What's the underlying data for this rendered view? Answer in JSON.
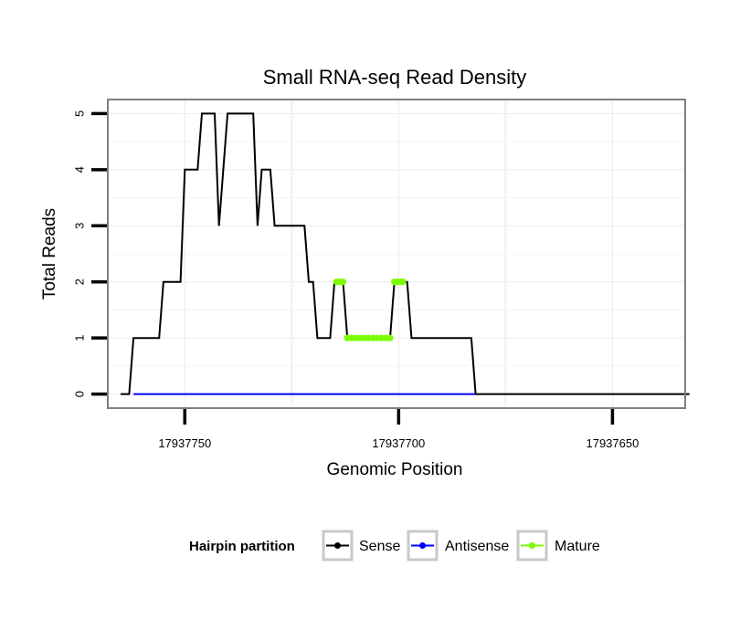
{
  "chart_data": {
    "type": "line",
    "title": "Small RNA-seq Read Density",
    "xlabel": "Genomic Position",
    "ylabel": "Total Reads",
    "x_reversed": true,
    "xlim": [
      17937768,
      17937633
    ],
    "ylim": [
      -0.25,
      5.25
    ],
    "x_ticks": [
      17937750,
      17937700,
      17937650
    ],
    "x_tick_labels": [
      "17937750",
      "17937700",
      "17937650"
    ],
    "y_ticks": [
      0,
      1,
      2,
      3,
      4,
      5
    ],
    "y_tick_labels": [
      "0",
      "1",
      "2",
      "3",
      "4",
      "5"
    ],
    "grid": true,
    "legend": {
      "title": "Hairpin partition",
      "position": "bottom",
      "entries": [
        {
          "name": "Sense",
          "color": "#000000"
        },
        {
          "name": "Antisense",
          "color": "#0000ff"
        },
        {
          "name": "Mature",
          "color": "#7cfc00"
        }
      ]
    },
    "series": [
      {
        "name": "Sense",
        "color": "#000000",
        "points": [
          [
            17937765,
            0
          ],
          [
            17937763,
            0
          ],
          [
            17937762,
            1
          ],
          [
            17937761,
            1
          ],
          [
            17937756,
            1
          ],
          [
            17937755,
            2
          ],
          [
            17937751,
            2
          ],
          [
            17937750,
            4
          ],
          [
            17937747,
            4
          ],
          [
            17937746,
            5
          ],
          [
            17937743,
            5
          ],
          [
            17937742,
            3
          ],
          [
            17937741,
            4
          ],
          [
            17937740,
            5
          ],
          [
            17937734,
            5
          ],
          [
            17937733,
            3
          ],
          [
            17937732,
            4
          ],
          [
            17937730,
            4
          ],
          [
            17937729,
            3
          ],
          [
            17937722,
            3
          ],
          [
            17937721,
            2
          ],
          [
            17937720,
            2
          ],
          [
            17937719,
            1
          ],
          [
            17937716,
            1
          ],
          [
            17937715,
            2
          ],
          [
            17937713,
            2
          ],
          [
            17937712,
            1
          ],
          [
            17937702,
            1
          ],
          [
            17937701,
            2
          ],
          [
            17937698,
            2
          ],
          [
            17937697,
            1
          ],
          [
            17937683,
            1
          ],
          [
            17937682,
            0
          ],
          [
            17937632,
            0
          ]
        ]
      },
      {
        "name": "Antisense",
        "color": "#0000ff",
        "points": [
          [
            17937762,
            0
          ],
          [
            17937682,
            0
          ]
        ]
      },
      {
        "name": "Mature",
        "color": "#7cfc00",
        "segments": [
          {
            "x": [
              17937714.5,
              17937714,
              17937713.5,
              17937713
            ],
            "y": [
              2,
              2,
              2,
              2
            ]
          },
          {
            "x": [
              17937712,
              17937711,
              17937710,
              17937709,
              17937708,
              17937707,
              17937706,
              17937705,
              17937704,
              17937703,
              17937702
            ],
            "y": [
              1,
              1,
              1,
              1,
              1,
              1,
              1,
              1,
              1,
              1,
              1
            ]
          },
          {
            "x": [
              17937701,
              17937700.5,
              17937700,
              17937699.5,
              17937699
            ],
            "y": [
              2,
              2,
              2,
              2,
              2
            ]
          }
        ]
      }
    ]
  }
}
